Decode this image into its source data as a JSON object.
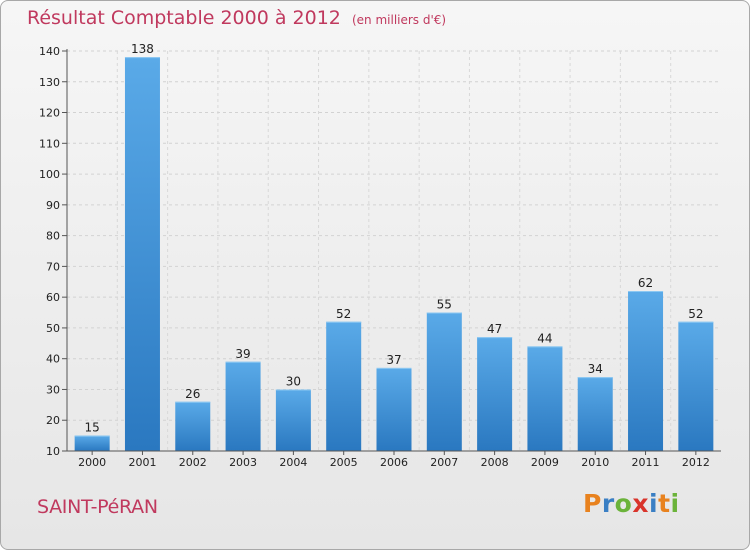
{
  "header": {
    "title": "Résultat Comptable 2000 à 2012",
    "unit": "(en milliers d'€)"
  },
  "footer": {
    "commune": "SAINT-PéRAN",
    "logo_letters": [
      "P",
      "r",
      "o",
      "x",
      "i",
      "t",
      "i"
    ],
    "logo_colors": [
      "#e8821e",
      "#3a7fc4",
      "#6bb33a",
      "#d9342b",
      "#3a7fc4",
      "#e8821e",
      "#6bb33a"
    ]
  },
  "chart_data": {
    "type": "bar",
    "title": "Résultat Comptable 2000 à 2012",
    "subtitle": "(en milliers d'€)",
    "categories": [
      "2000",
      "2001",
      "2002",
      "2003",
      "2004",
      "2005",
      "2006",
      "2007",
      "2008",
      "2009",
      "2010",
      "2011",
      "2012"
    ],
    "values": [
      15,
      138,
      26,
      39,
      30,
      52,
      37,
      55,
      47,
      44,
      34,
      62,
      52
    ],
    "ylim": [
      10,
      140
    ],
    "yticks": [
      10,
      20,
      30,
      40,
      50,
      60,
      70,
      80,
      90,
      100,
      110,
      120,
      130,
      140
    ],
    "grid": true,
    "bar_color_top": "#5aaae8",
    "bar_color_bottom": "#2a78c0"
  }
}
